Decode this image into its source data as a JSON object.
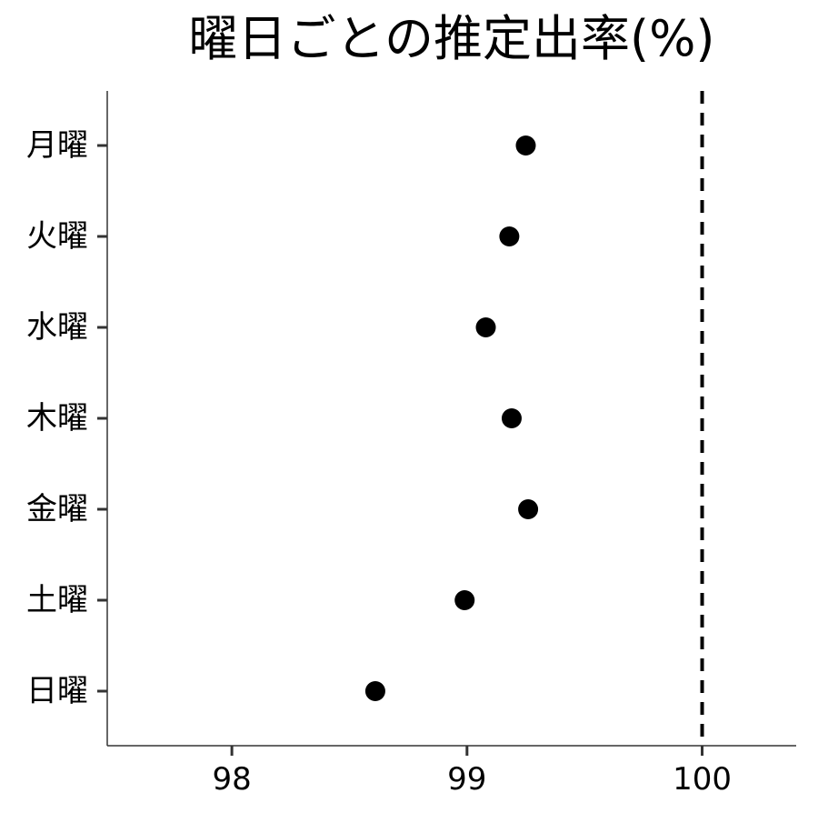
{
  "chart_data": {
    "type": "scatter",
    "title": "曜日ごとの推定出率(%)",
    "xlabel": "",
    "ylabel": "",
    "categories": [
      "月曜",
      "火曜",
      "水曜",
      "木曜",
      "金曜",
      "土曜",
      "日曜"
    ],
    "values": [
      99.25,
      99.18,
      99.08,
      99.19,
      99.26,
      98.99,
      98.61
    ],
    "xlim": [
      97.47,
      100.4
    ],
    "x_ticks": [
      98,
      99,
      100
    ],
    "x_tick_labels": [
      "98",
      "99",
      "100"
    ],
    "reference_line": {
      "x": 100,
      "style": "dashed"
    },
    "grid": false,
    "legend": "none",
    "colors": {
      "points": "#000000",
      "axis": "#333333",
      "reference": "#000000"
    }
  }
}
